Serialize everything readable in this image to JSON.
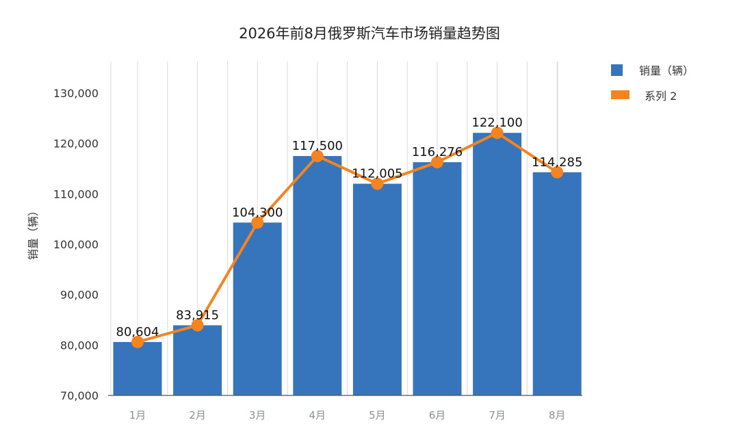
{
  "chart_data": {
    "type": "bar+line",
    "title": "2026年前8月俄罗斯汽车市场销量趋势图",
    "ylabel": "销量（辆）",
    "xlabel": "",
    "categories": [
      "1月",
      "2月",
      "3月",
      "4月",
      "5月",
      "6月",
      "7月",
      "8月"
    ],
    "series": [
      {
        "name": "销量（辆）",
        "type": "bar",
        "color": "#3674bb",
        "values": [
          80604,
          83915,
          104300,
          117500,
          112005,
          116276,
          122100,
          114285
        ]
      },
      {
        "name": "系列 2",
        "type": "line",
        "color": "#f5841f",
        "values": [
          80604,
          83915,
          104300,
          117500,
          112005,
          116276,
          122100,
          114285
        ]
      }
    ],
    "data_labels": [
      "80,604",
      "83,915",
      "104,300",
      "117,500",
      "112,005",
      "116,276",
      "122,100",
      "114,285"
    ],
    "ylim": [
      70000,
      137000
    ],
    "yticks": [
      70000,
      80000,
      90000,
      100000,
      110000,
      120000,
      130000
    ],
    "ytick_labels": [
      "70,000",
      "80,000",
      "90,000",
      "100,000",
      "110,000",
      "120,000",
      "130,000"
    ],
    "grid": "vertical",
    "legend": "right"
  }
}
